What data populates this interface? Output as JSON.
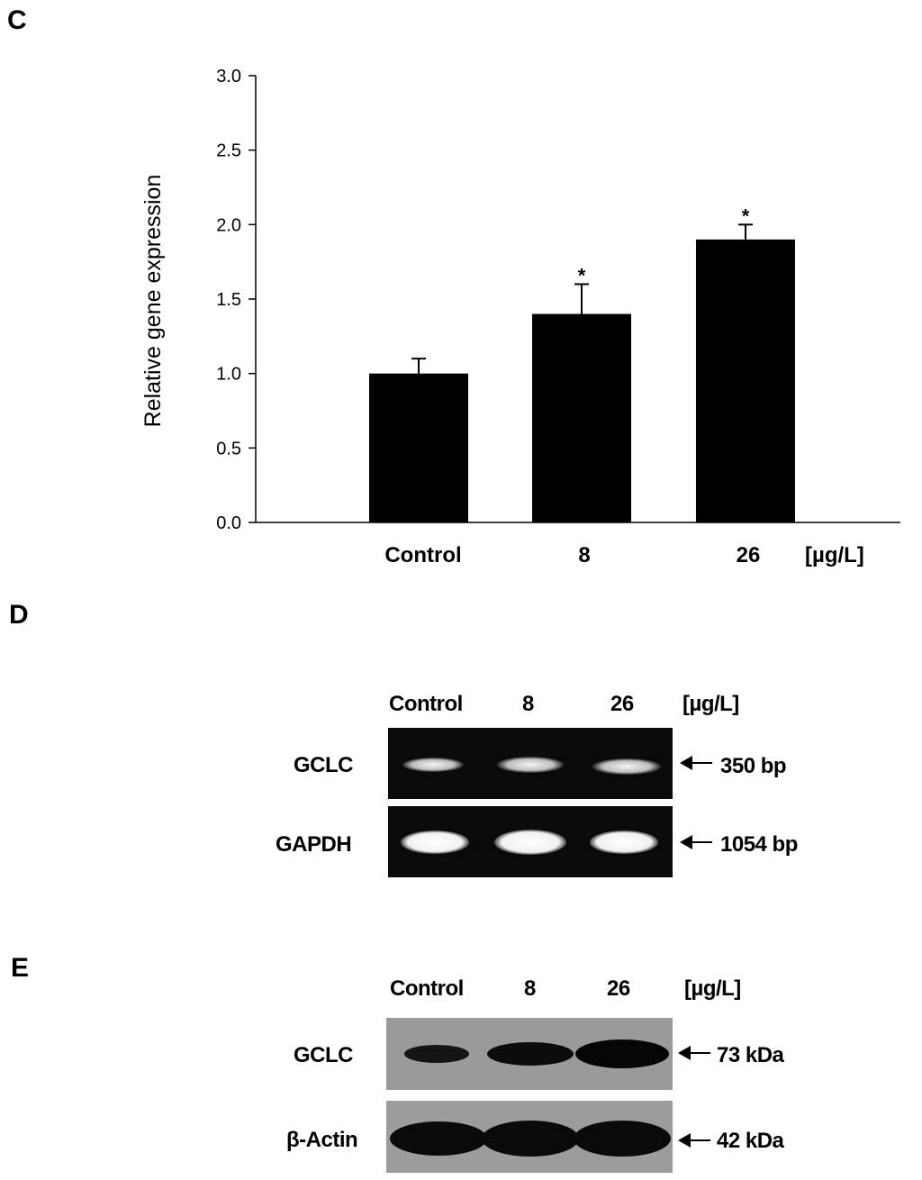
{
  "panels": {
    "c": {
      "letter": "C"
    },
    "d": {
      "letter": "D",
      "lanes": [
        "Control",
        "8",
        "26"
      ],
      "unit": "[µg/L]",
      "rows": [
        {
          "label": "GCLC",
          "size": "350 bp"
        },
        {
          "label": "GAPDH",
          "size": "1054 bp"
        }
      ]
    },
    "e": {
      "letter": "E",
      "lanes": [
        "Control",
        "8",
        "26"
      ],
      "unit": "[µg/L]",
      "rows": [
        {
          "label": "GCLC",
          "size": "73 kDa"
        },
        {
          "label": "β-Actin",
          "size": "42 kDa"
        }
      ]
    }
  },
  "chart_data": {
    "type": "bar",
    "categories": [
      "Control",
      "8",
      "26"
    ],
    "values": [
      1.0,
      1.4,
      1.9
    ],
    "errors": [
      0.1,
      0.2,
      0.1
    ],
    "significance": [
      "",
      "*",
      "*"
    ],
    "ylabel": "Relative gene expression",
    "xunit": "[µg/L]",
    "ylim": [
      0,
      3.0
    ],
    "yticks": [
      "0.0",
      "0.5",
      "1.0",
      "1.5",
      "2.0",
      "2.5",
      "3.0"
    ],
    "grid": false,
    "bar_color": "#000000"
  }
}
